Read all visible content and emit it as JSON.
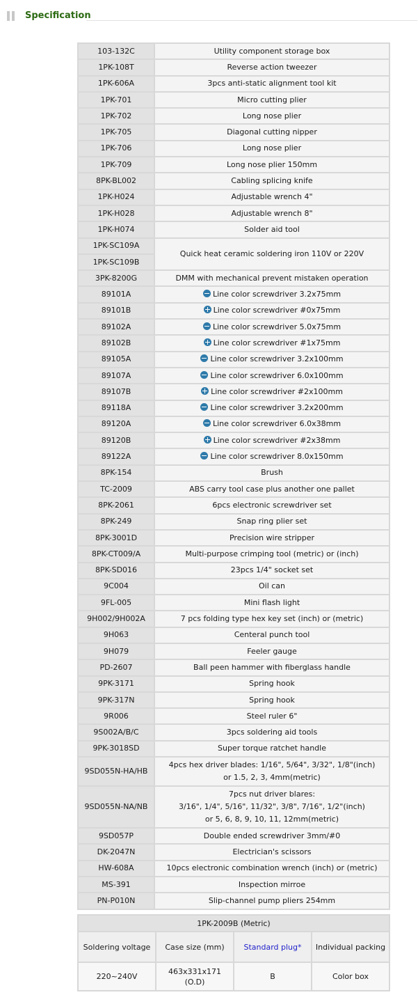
{
  "header": {
    "title": "Specification"
  },
  "specs": [
    {
      "code": "103-132C",
      "desc": "Utility component storage box"
    },
    {
      "code": "1PK-108T",
      "desc": "Reverse action tweezer"
    },
    {
      "code": "1PK-606A",
      "desc": "3pcs anti-static alignment tool kit"
    },
    {
      "code": "1PK-701",
      "desc": "Micro cutting plier"
    },
    {
      "code": "1PK-702",
      "desc": "Long nose plier"
    },
    {
      "code": "1PK-705",
      "desc": "Diagonal cutting nipper"
    },
    {
      "code": "1PK-706",
      "desc": "Long nose plier"
    },
    {
      "code": "1PK-709",
      "desc": "Long nose plier 150mm"
    },
    {
      "code": "8PK-BL002",
      "desc": "Cabling splicing knife"
    },
    {
      "code": "1PK-H024",
      "desc": "Adjustable wrench 4\""
    },
    {
      "code": "1PK-H028",
      "desc": "Adjustable wrench 8\""
    },
    {
      "code": "1PK-H074",
      "desc": "Solder aid tool"
    },
    {
      "code": "1PK-SC109A",
      "desc": "Quick heat ceramic soldering iron 110V or 220V",
      "code2": "1PK-SC109B",
      "rowspan": 2
    },
    {
      "code": "3PK-8200G",
      "desc": "DMM with mechanical prevent mistaken operation"
    },
    {
      "code": "89101A",
      "desc": "Line color screwdriver 3.2x75mm",
      "icon": "minus-icon"
    },
    {
      "code": "89101B",
      "desc": "Line color screwdriver #0x75mm",
      "icon": "plus-icon"
    },
    {
      "code": "89102A",
      "desc": "Line color screwdriver 5.0x75mm",
      "icon": "minus-icon"
    },
    {
      "code": "89102B",
      "desc": "Line color screwdriver #1x75mm",
      "icon": "plus-icon"
    },
    {
      "code": "89105A",
      "desc": "Line color screwdriver 3.2x100mm",
      "icon": "minus-icon"
    },
    {
      "code": "89107A",
      "desc": "Line color screwdriver 6.0x100mm",
      "icon": "minus-icon"
    },
    {
      "code": "89107B",
      "desc": "Line color screwdriver #2x100mm",
      "icon": "plus-icon"
    },
    {
      "code": "89118A",
      "desc": "Line color screwdriver 3.2x200mm",
      "icon": "minus-icon"
    },
    {
      "code": "89120A",
      "desc": "Line color screwdriver 6.0x38mm",
      "icon": "minus-icon"
    },
    {
      "code": "89120B",
      "desc": "Line color screwdriver #2x38mm",
      "icon": "plus-icon"
    },
    {
      "code": "89122A",
      "desc": "Line color screwdriver 8.0x150mm",
      "icon": "minus-icon"
    },
    {
      "code": "8PK-154",
      "desc": "Brush"
    },
    {
      "code": "TC-2009",
      "desc": "ABS carry tool case plus another one pallet"
    },
    {
      "code": "8PK-2061",
      "desc": "6pcs electronic screwdriver set"
    },
    {
      "code": "8PK-249",
      "desc": "Snap ring plier set"
    },
    {
      "code": "8PK-3001D",
      "desc": "Precision wire stripper"
    },
    {
      "code": "8PK-CT009/A",
      "desc": "Multi-purpose crimping tool (metric) or (inch)"
    },
    {
      "code": "8PK-SD016",
      "desc": "23pcs 1/4\" socket set"
    },
    {
      "code": "9C004",
      "desc": "Oil can"
    },
    {
      "code": "9FL-005",
      "desc": "Mini flash light"
    },
    {
      "code": "9H002/9H002A",
      "desc": "7 pcs folding type hex key set (inch) or (metric)"
    },
    {
      "code": "9H063",
      "desc": "Centeral punch tool"
    },
    {
      "code": "9H079",
      "desc": "Feeler gauge"
    },
    {
      "code": "PD-2607",
      "desc": "Ball peen hammer with fiberglass handle"
    },
    {
      "code": "9PK-3171",
      "desc": "Spring hook"
    },
    {
      "code": "9PK-317N",
      "desc": "Spring hook"
    },
    {
      "code": "9R006",
      "desc": "Steel ruler 6\""
    },
    {
      "code": "9S002A/B/C",
      "desc": "3pcs soldering aid tools"
    },
    {
      "code": "9PK-3018SD",
      "desc": "Super torque ratchet handle"
    },
    {
      "code": "9SD055N-HA/HB",
      "desc_lines": [
        "4pcs hex driver blades: 1/16\", 5/64\", 3/32\", 1/8\"(inch)",
        "or 1.5, 2, 3, 4mm(metric)"
      ]
    },
    {
      "code": "9SD055N-NA/NB",
      "desc_lines": [
        "7pcs nut driver blares:",
        "3/16\", 1/4\", 5/16\", 11/32\", 3/8\", 7/16\", 1/2\"(inch)",
        "or 5, 6, 8, 9, 10, 11, 12mm(metric)"
      ]
    },
    {
      "code": "9SD057P",
      "desc": "Double ended screwdriver 3mm/#0"
    },
    {
      "code": "DK-2047N",
      "desc": "Electrician's scissors"
    },
    {
      "code": "HW-608A",
      "desc": "10pcs electronic combination wrench (inch) or (metric)"
    },
    {
      "code": "MS-391",
      "desc": "Inspection mirroe"
    },
    {
      "code": "PN-P010N",
      "desc": "Slip-channel pump pliers 254mm"
    }
  ],
  "packing": {
    "title": "1PK-2009B (Metric)",
    "headers": [
      "Soldering voltage",
      "Case size (mm)",
      "Standard plug*",
      "Individual packing"
    ],
    "values": [
      "220~240V",
      "463x331x171 (O.D)",
      "B",
      "Color box"
    ],
    "link_color": "#2222cc"
  }
}
